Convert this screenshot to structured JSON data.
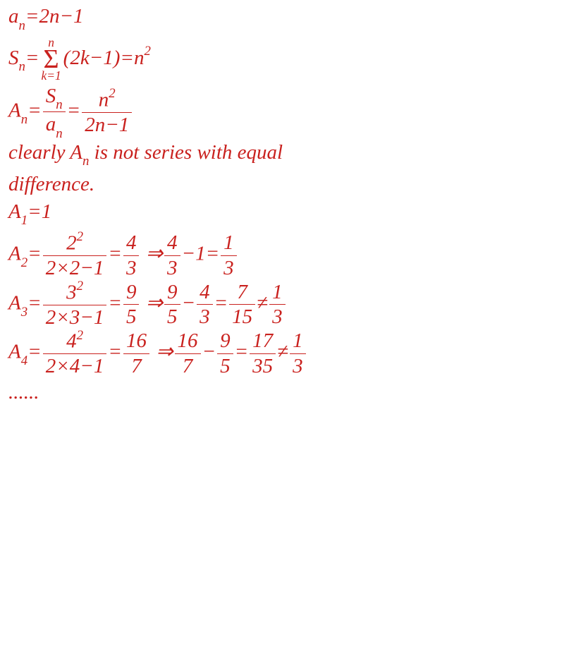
{
  "colors": {
    "text_red": "#c9211e",
    "bg": "#ffffff",
    "bar": "#c9211e"
  },
  "font": {
    "size_main": 29,
    "size_sigma": 38,
    "line_height": 1.05,
    "bar_width": 1.5
  },
  "eq": {
    "l1": {
      "a": "a",
      "n": "n",
      "eq": "=2n−1"
    },
    "l2": {
      "S": "S",
      "n": "n",
      "eq": "=",
      "sigTop": "n",
      "sig": "Σ",
      "sigBot": "k=1",
      "body": "(2k−1)=n",
      "sup2": "2"
    },
    "l3": {
      "A": "A",
      "n": "n",
      "eq": "=",
      "f1n": "S",
      "f1nsub": "n",
      "f1d": "a",
      "f1dsub": "n",
      "mid": "=",
      "f2n": "n",
      "f2nsup": "2",
      "f2d": "2n−1"
    },
    "l4": "clearly A",
    "l4sub": "n",
    "l4tail": " is not series with equal",
    "l5": "difference.",
    "l6": {
      "A": "A",
      "s1": "1",
      "eq": "=1"
    },
    "l7": {
      "A": "A",
      "s": "2",
      "eq": "=",
      "f1n": "2",
      "f1nsup": "2",
      "f1d": "2×2−1",
      "mid": "=",
      "f2n": "4",
      "f2d": "3",
      "sp": "  ⇒",
      "f3n": "4",
      "f3d": "3",
      "m2": "−1=",
      "f4n": "1",
      "f4d": "3"
    },
    "l8": {
      "A": "A",
      "s": "3",
      "eq": "=",
      "f1n": "3",
      "f1nsup": "2",
      "f1d": "2×3−1",
      "mid": "=",
      "f2n": "9",
      "f2d": "5",
      "sp": " ⇒",
      "f3n": "9",
      "f3d": "5",
      "m2": "−",
      "f4n": "4",
      "f4d": "3",
      "m3": "=",
      "f5n": "7",
      "f5d": "15",
      "ne": "≠",
      "f6n": "1",
      "f6d": "3"
    },
    "l9": {
      "A": "A",
      "s": "4",
      "eq": "=",
      "f1n": "4",
      "f1nsup": "2",
      "f1d": "2×4−1",
      "mid": "=",
      "f2n": "16",
      "f2d": "7",
      "sp": " ⇒",
      "f3n": "16",
      "f3d": "7",
      "m2": "−",
      "f4n": "9",
      "f4d": "5",
      "m3": "=",
      "f5n": "17",
      "f5d": "35",
      "ne": "≠",
      "f6n": "1",
      "f6d": "3"
    },
    "l10": "......"
  },
  "spacing": {
    "l1_mb": 8,
    "l2_mb": 4,
    "l3_mb": 4,
    "l4_mb": 10,
    "l5_mb": 8,
    "l6_mb": 8,
    "l7_mb": 2,
    "l8_mb": 2,
    "l9_mb": 6,
    "l10_mb": 0
  }
}
